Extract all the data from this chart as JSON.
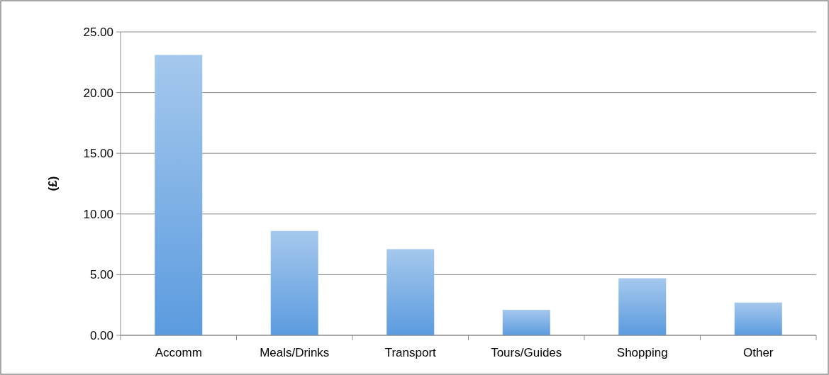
{
  "chart_data": {
    "type": "bar",
    "ylabel": "(£)",
    "categories": [
      "Accomm",
      "Meals/Drinks",
      "Transport",
      "Tours/Guides",
      "Shopping",
      "Other"
    ],
    "values": [
      23.1,
      8.6,
      7.1,
      2.1,
      4.7,
      2.7
    ],
    "color": "#5b9bdf",
    "ylim": [
      0,
      25
    ],
    "yticks": [
      {
        "value": 0,
        "label": "0.00"
      },
      {
        "value": 5,
        "label": "5.00"
      },
      {
        "value": 10,
        "label": "10.00"
      },
      {
        "value": 15,
        "label": "15.00"
      },
      {
        "value": 20,
        "label": "20.00"
      },
      {
        "value": 25,
        "label": "25.00"
      }
    ],
    "grid": "y"
  }
}
